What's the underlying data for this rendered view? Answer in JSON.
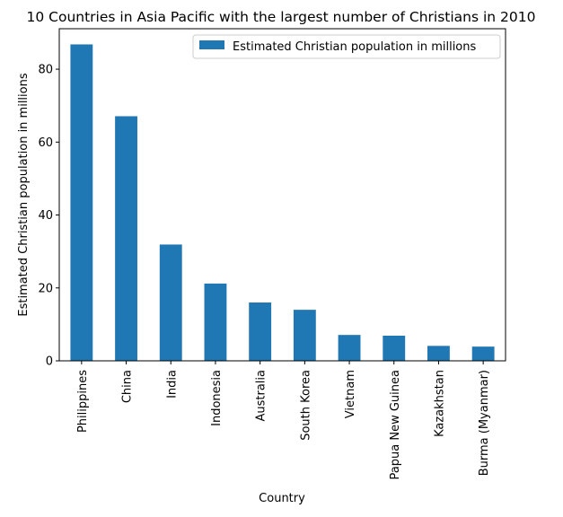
{
  "chart_data": {
    "type": "bar",
    "title": "10 Countries in Asia Pacific with the largest number of Christians in 2010",
    "xlabel": "Country",
    "ylabel": "Estimated Christian population in millions",
    "categories": [
      "Philippines",
      "China",
      "India",
      "Indonesia",
      "Australia",
      "South Korea",
      "Vietnam",
      "Papua New Guinea",
      "Kazakhstan",
      "Burma (Myanmar)"
    ],
    "series": [
      {
        "name": "Estimated Christian population in millions",
        "values": [
          86.8,
          67.1,
          31.9,
          21.2,
          16.0,
          14.0,
          7.1,
          6.9,
          4.1,
          3.9
        ],
        "color": "#1f77b4"
      }
    ],
    "ylim": [
      0,
      91.1
    ],
    "yticks": [
      0,
      20,
      40,
      60,
      80
    ],
    "grid": false,
    "legend_position": "top-right"
  }
}
